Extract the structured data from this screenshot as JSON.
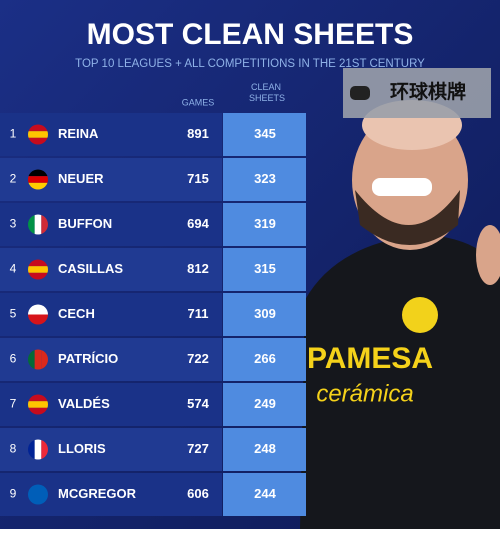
{
  "header": {
    "title": "MOST CLEAN SHEETS",
    "subtitle": "TOP 10 LEAGUES + ALL COMPETITIONS IN THE 21ST CENTURY"
  },
  "watermark": "环球棋牌",
  "table": {
    "columns": [
      "GAMES",
      "CLEAN SHEETS"
    ],
    "rows": [
      [
        "1",
        "REINA",
        "891",
        "345"
      ],
      [
        "2",
        "NEUER",
        "715",
        "323"
      ],
      [
        "3",
        "BUFFON",
        "694",
        "319"
      ],
      [
        "4",
        "CASILLAS",
        "812",
        "315"
      ],
      [
        "5",
        "CECH",
        "711",
        "309"
      ],
      [
        "6",
        "PATRÍCIO",
        "722",
        "266"
      ],
      [
        "7",
        "VALDÉS",
        "574",
        "249"
      ],
      [
        "8",
        "LLORIS",
        "727",
        "248"
      ],
      [
        "9",
        "MCGREGOR",
        "606",
        "244"
      ]
    ]
  },
  "jersey": {
    "sponsor": "PAMESA",
    "sponsor_line2": "cerámica"
  }
}
